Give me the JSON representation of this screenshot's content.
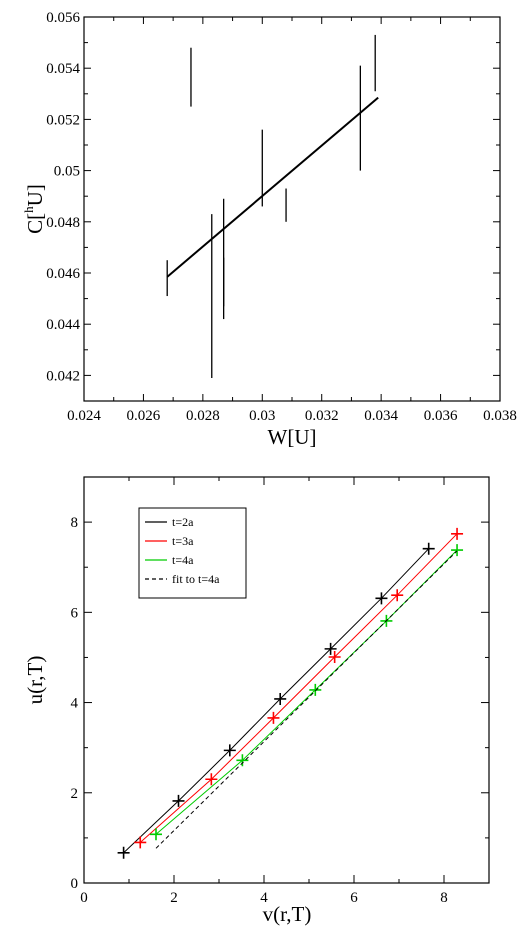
{
  "chart_data": [
    {
      "type": "scatter",
      "xlabel": "W[U]",
      "ylabel": "C[hU]",
      "ylabel_main": "C[",
      "ylabel_sup": "h",
      "ylabel_tail": "U]",
      "xlim": [
        0.024,
        0.038
      ],
      "ylim": [
        0.041,
        0.056
      ],
      "xticks": [
        "0.024",
        "0.026",
        "0.028",
        "0.03",
        "0.032",
        "0.034",
        "0.036",
        "0.038"
      ],
      "yticks": [
        "0.042",
        "0.044",
        "0.046",
        "0.048",
        "0.05",
        "0.052",
        "0.054",
        "0.056"
      ],
      "points": [
        {
          "x": 0.0268,
          "y": 0.0458,
          "ylow": 0.0451,
          "yhigh": 0.0465
        },
        {
          "x": 0.0276,
          "y": 0.0537,
          "ylow": 0.0525,
          "yhigh": 0.0548
        },
        {
          "x": 0.0283,
          "y": 0.0451,
          "ylow": 0.0419,
          "yhigh": 0.0483
        },
        {
          "x": 0.0287,
          "y": 0.0467,
          "ylow": 0.0442,
          "yhigh": 0.0489
        },
        {
          "x": 0.0287,
          "y": 0.0456,
          "ylow": 0.0447,
          "yhigh": 0.0466
        },
        {
          "x": 0.03,
          "y": 0.0501,
          "ylow": 0.0486,
          "yhigh": 0.0516
        },
        {
          "x": 0.0308,
          "y": 0.0486,
          "ylow": 0.048,
          "yhigh": 0.0493
        },
        {
          "x": 0.0333,
          "y": 0.0521,
          "ylow": 0.05,
          "yhigh": 0.0541
        },
        {
          "x": 0.0338,
          "y": 0.0542,
          "ylow": 0.0531,
          "yhigh": 0.0553
        }
      ],
      "fit_line": {
        "x": [
          0.0268,
          0.0339
        ],
        "y": [
          0.04585,
          0.05285
        ]
      },
      "grid": false,
      "color": "#000000"
    },
    {
      "type": "line",
      "xlabel": "v(r,T)",
      "ylabel": "u(r,T)",
      "xlim": [
        0,
        9
      ],
      "ylim": [
        0,
        9
      ],
      "xticks": [
        "0",
        "2",
        "4",
        "6",
        "8"
      ],
      "yticks": [
        "0",
        "2",
        "4",
        "6",
        "8"
      ],
      "xtick_values": [
        0,
        2,
        4,
        6,
        8
      ],
      "ytick_values": [
        0,
        2,
        4,
        6,
        8
      ],
      "grid": false,
      "legend_position": "top-left",
      "series": [
        {
          "name": "t=2a",
          "color": "#000000",
          "dash": false,
          "x": [
            0.88,
            2.1,
            3.24,
            4.36,
            5.48,
            6.61,
            7.66
          ],
          "y": [
            0.67,
            1.82,
            2.94,
            4.08,
            5.19,
            6.31,
            7.41
          ],
          "markers": true
        },
        {
          "name": "t=3a",
          "color": "#ff0000",
          "dash": false,
          "x": [
            1.25,
            2.83,
            4.21,
            5.57,
            6.96,
            8.29
          ],
          "y": [
            0.9,
            2.3,
            3.66,
            5.01,
            6.38,
            7.74
          ],
          "markers": true
        },
        {
          "name": "t=4a",
          "color": "#00cc00",
          "dash": false,
          "x": [
            1.6,
            3.52,
            5.14,
            6.72,
            8.29
          ],
          "y": [
            1.08,
            2.72,
            4.28,
            5.81,
            7.38
          ],
          "markers": true
        },
        {
          "name": "fit to t=4a",
          "color": "#000000",
          "dash": true,
          "x": [
            1.6,
            8.29
          ],
          "y": [
            0.77,
            7.36
          ],
          "markers": false
        }
      ]
    }
  ]
}
